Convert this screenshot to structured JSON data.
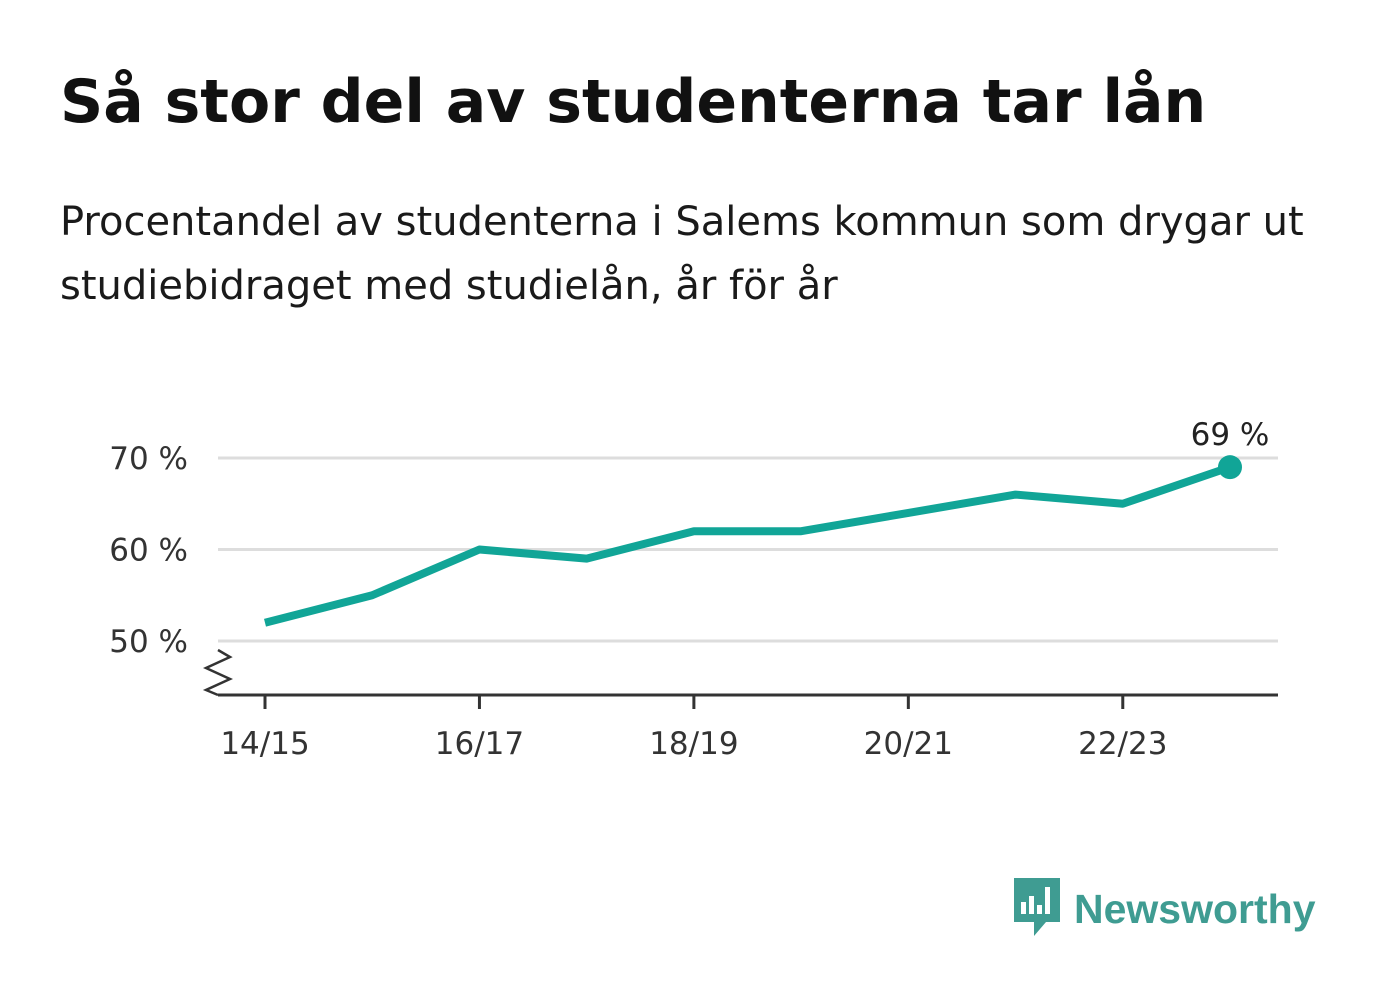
{
  "header": {
    "title": "Så stor del av studenterna tar lån",
    "subtitle": "Procentandel av studenterna i Salems kommun som drygar ut studiebidraget med studielån, år för år"
  },
  "brand": {
    "name": "Newsworthy",
    "icon": "newsworthy-logo-icon",
    "color": "#3f9c92"
  },
  "colors": {
    "line": "#11a597",
    "grid": "#dddddd",
    "axis": "#333333"
  },
  "chart_data": {
    "type": "line",
    "title": "Så stor del av studenterna tar lån",
    "subtitle": "Procentandel av studenterna i Salems kommun som drygar ut studiebidraget med studielån, år för år",
    "xlabel": "",
    "ylabel": "",
    "x": [
      "14/15",
      "15/16",
      "16/17",
      "17/18",
      "18/19",
      "19/20",
      "20/21",
      "21/22",
      "22/23",
      "23/24"
    ],
    "series": [
      {
        "values": [
          52,
          55,
          60,
          59,
          62,
          62,
          64,
          66,
          65,
          69
        ]
      }
    ],
    "x_tick_labels": [
      "14/15",
      "16/17",
      "18/19",
      "20/21",
      "22/23"
    ],
    "y_ticks": [
      50,
      60,
      70
    ],
    "y_tick_labels": [
      "50 %",
      "60 %",
      "70 %"
    ],
    "ylim": [
      44.2,
      70.5
    ],
    "grid": true,
    "axis_break": true,
    "end_label": "69 %",
    "legend": "none"
  }
}
